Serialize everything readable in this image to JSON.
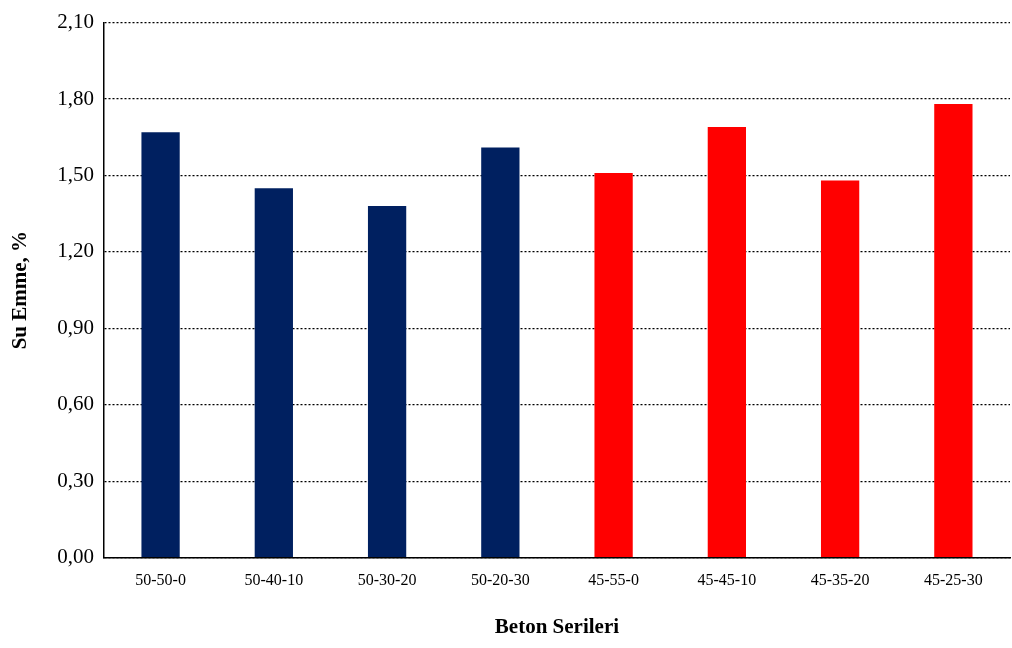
{
  "chart_data": {
    "type": "bar",
    "xlabel": "Beton Serileri",
    "ylabel": "Su Emme, %",
    "categories": [
      "50-50-0",
      "50-40-10",
      "50-30-20",
      "50-20-30",
      "45-55-0",
      "45-45-10",
      "45-35-20",
      "45-25-30"
    ],
    "values": [
      1.67,
      1.45,
      1.38,
      1.61,
      1.51,
      1.69,
      1.48,
      1.78
    ],
    "colors": [
      "#002060",
      "#002060",
      "#002060",
      "#002060",
      "#ff0000",
      "#ff0000",
      "#ff0000",
      "#ff0000"
    ],
    "ylim": [
      0,
      2.1
    ],
    "yticks": [
      {
        "value": 0,
        "label": "0,00"
      },
      {
        "value": 0.3,
        "label": "0,30"
      },
      {
        "value": 0.6,
        "label": "0,60"
      },
      {
        "value": 0.9,
        "label": "0,90"
      },
      {
        "value": 1.2,
        "label": "1,20"
      },
      {
        "value": 1.5,
        "label": "1,50"
      },
      {
        "value": 1.8,
        "label": "1,80"
      },
      {
        "value": 2.1,
        "label": "2,10"
      }
    ],
    "grid": "y",
    "legend": false
  }
}
